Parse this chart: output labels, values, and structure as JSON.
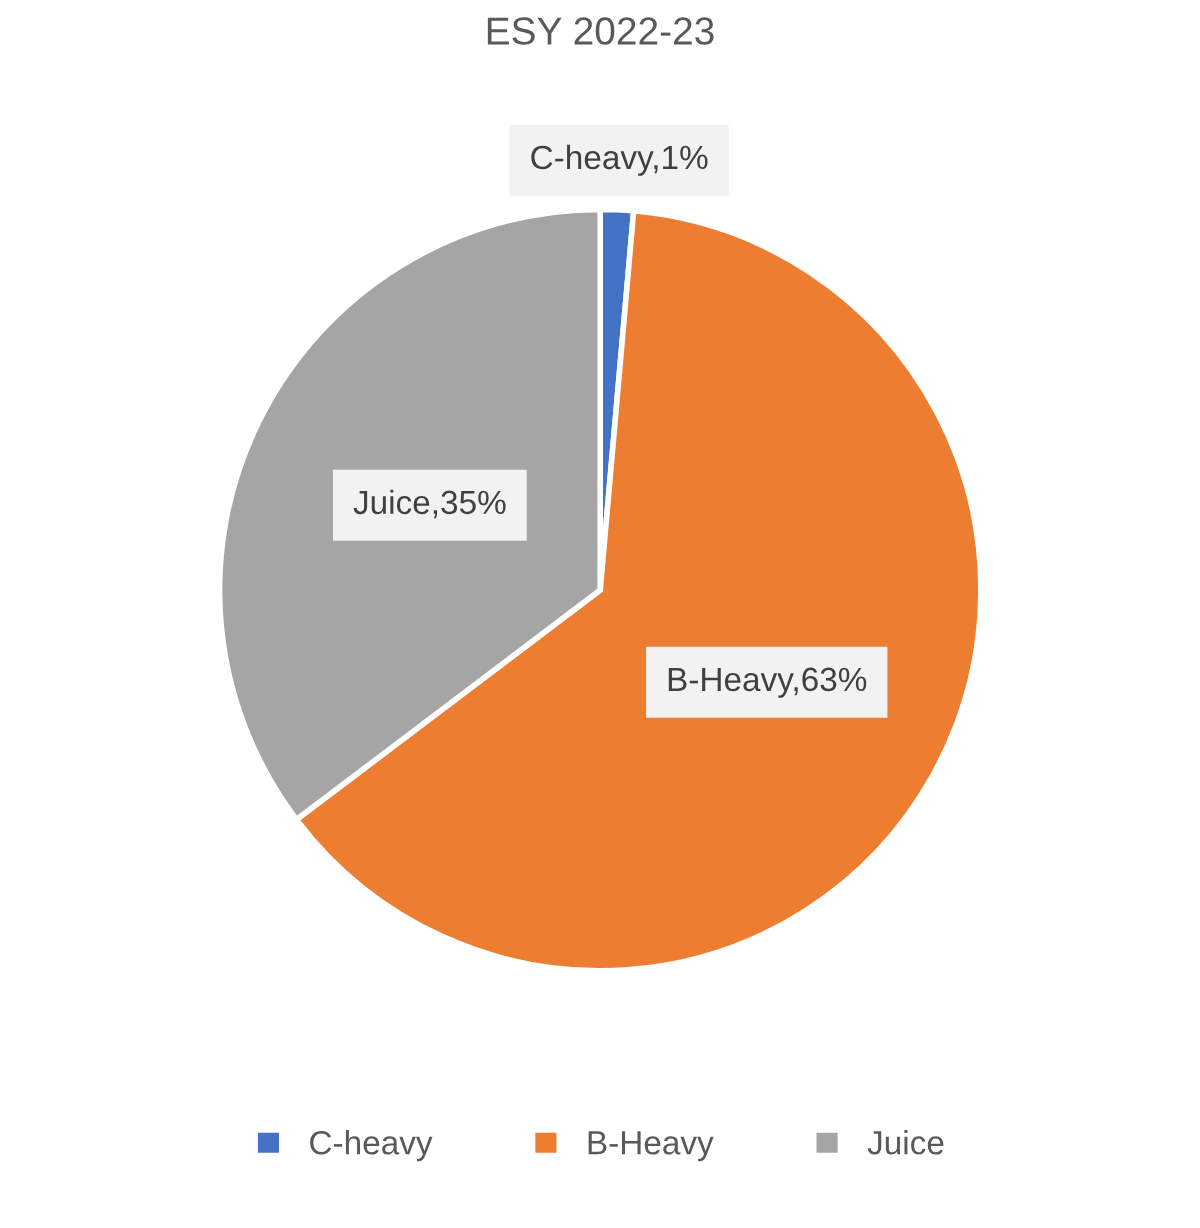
{
  "chart_data": {
    "type": "pie",
    "title": "ESY 2022-23",
    "categories": [
      "C-heavy",
      "B-Heavy",
      "Juice"
    ],
    "values": [
      1.4,
      63.3,
      35.3
    ],
    "value_labels": [
      "C-heavy,1%",
      "B-Heavy,63%",
      "Juice,35%"
    ],
    "colors": [
      "#4472c4",
      "#ed7d31",
      "#a5a5a5"
    ],
    "legend": "bottom"
  }
}
